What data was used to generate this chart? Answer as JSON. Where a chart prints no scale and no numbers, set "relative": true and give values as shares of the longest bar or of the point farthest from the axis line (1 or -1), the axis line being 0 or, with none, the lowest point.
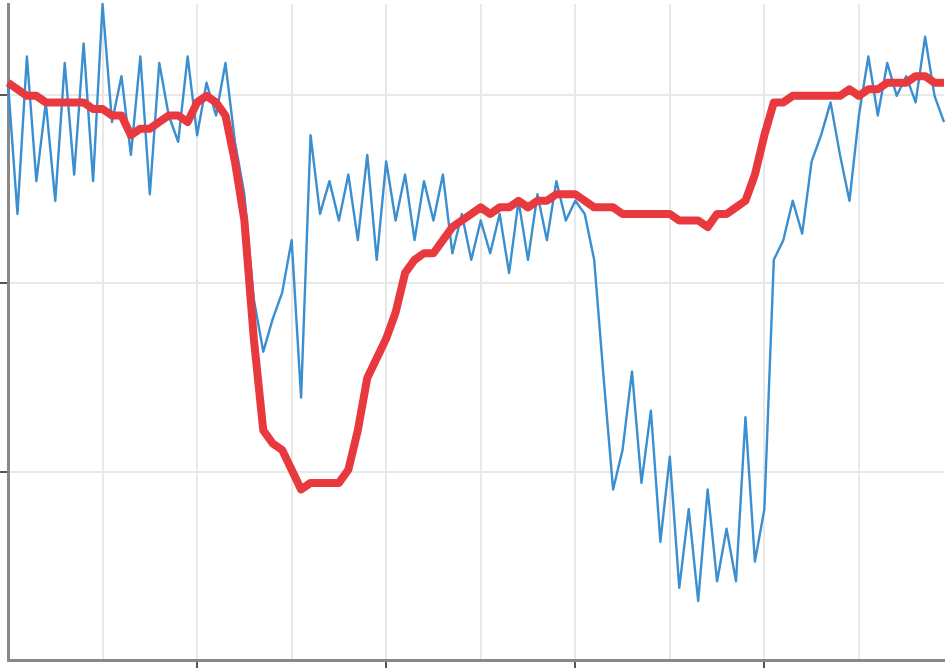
{
  "chart_data": {
    "type": "line",
    "relative": true,
    "grid": true,
    "legend": false,
    "marker": "none",
    "line_style": "solid",
    "categories": [
      null,
      null,
      null,
      null,
      null,
      null,
      null,
      null,
      null,
      null,
      null,
      null,
      null,
      null,
      null,
      null,
      null,
      null,
      null,
      null,
      null,
      null,
      null,
      null,
      null,
      null,
      null,
      null,
      null,
      null,
      null,
      null,
      null,
      null,
      null,
      null,
      null,
      null,
      null,
      null,
      null,
      null,
      null,
      null,
      null,
      null,
      null,
      null,
      null,
      null,
      null,
      null,
      null,
      null,
      null,
      null,
      null,
      null,
      null,
      null,
      null,
      null,
      null,
      null,
      null,
      null,
      null,
      null,
      null,
      null,
      null,
      null,
      null,
      null,
      null,
      null,
      null,
      null,
      null,
      null,
      null,
      null,
      null,
      null,
      null,
      null,
      null,
      null,
      null,
      null,
      null,
      null,
      null,
      null,
      null,
      null,
      null,
      null,
      null,
      null
    ],
    "series": [
      {
        "color": "#3a8fd0",
        "values": [
          0.88,
          0.68,
          0.92,
          0.73,
          0.85,
          0.7,
          0.91,
          0.74,
          0.94,
          0.73,
          1,
          0.82,
          0.89,
          0.77,
          0.92,
          0.71,
          0.91,
          0.83,
          0.79,
          0.92,
          0.8,
          0.88,
          0.83,
          0.91,
          0.79,
          0.71,
          0.55,
          0.47,
          0.52,
          0.56,
          0.64,
          0.4,
          0.8,
          0.68,
          0.73,
          0.67,
          0.74,
          0.64,
          0.77,
          0.61,
          0.76,
          0.67,
          0.74,
          0.64,
          0.73,
          0.67,
          0.74,
          0.62,
          0.68,
          0.61,
          0.67,
          0.62,
          0.68,
          0.59,
          0.7,
          0.61,
          0.71,
          0.64,
          0.73,
          0.67,
          0.7,
          0.68,
          0.61,
          0.43,
          0.26,
          0.32,
          0.44,
          0.27,
          0.38,
          0.18,
          0.31,
          0.11,
          0.23,
          0.09,
          0.26,
          0.12,
          0.2,
          0.12,
          0.37,
          0.15,
          0.23,
          0.61,
          0.64,
          0.7,
          0.65,
          0.76,
          0.8,
          0.85,
          0.77,
          0.7,
          0.83,
          0.92,
          0.83,
          0.91,
          0.86,
          0.89,
          0.85,
          0.95,
          0.86,
          0.82
        ]
      },
      {
        "color": "#e8393f",
        "values": [
          0.88,
          0.87,
          0.86,
          0.86,
          0.85,
          0.85,
          0.85,
          0.85,
          0.85,
          0.84,
          0.84,
          0.83,
          0.83,
          0.8,
          0.81,
          0.81,
          0.82,
          0.83,
          0.83,
          0.82,
          0.85,
          0.86,
          0.85,
          0.83,
          0.76,
          0.67,
          0.49,
          0.35,
          0.33,
          0.32,
          0.29,
          0.26,
          0.27,
          0.27,
          0.27,
          0.27,
          0.29,
          0.35,
          0.43,
          0.46,
          0.49,
          0.53,
          0.59,
          0.61,
          0.62,
          0.62,
          0.64,
          0.66,
          0.67,
          0.68,
          0.69,
          0.68,
          0.69,
          0.69,
          0.7,
          0.69,
          0.7,
          0.7,
          0.71,
          0.71,
          0.71,
          0.7,
          0.69,
          0.69,
          0.69,
          0.68,
          0.68,
          0.68,
          0.68,
          0.68,
          0.68,
          0.67,
          0.67,
          0.67,
          0.66,
          0.68,
          0.68,
          0.69,
          0.7,
          0.74,
          0.8,
          0.85,
          0.85,
          0.86,
          0.86,
          0.86,
          0.86,
          0.86,
          0.86,
          0.87,
          0.86,
          0.87,
          0.87,
          0.88,
          0.88,
          0.88,
          0.89,
          0.89,
          0.88,
          0.88
        ]
      }
    ]
  }
}
